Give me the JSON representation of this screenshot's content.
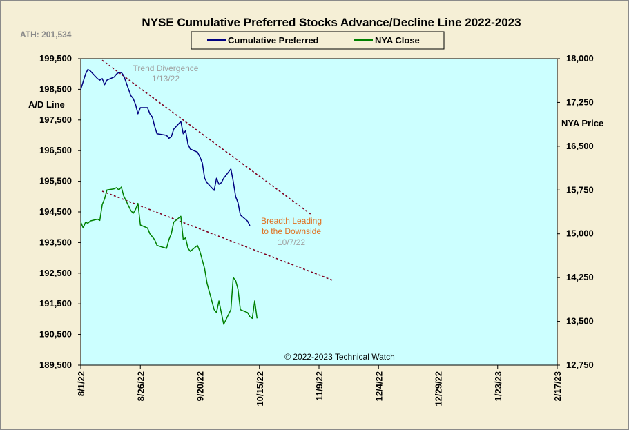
{
  "title": "NYSE Cumulative  Preferred Stocks Advance/Decline  Line  2022-2023",
  "ath_label": "ATH: 201,534",
  "copyright": "© 2022-2023  Technical  Watch",
  "colors": {
    "background": "#f5efd6",
    "plot_area": "#ccffff",
    "ad_line": "#000080",
    "nya_line": "#008000",
    "trendline": "#800020",
    "annotation_orange": "#e07020",
    "annotation_gray": "#a0a0a0"
  },
  "chart_data": {
    "type": "line",
    "title": "NYSE Cumulative  Preferred Stocks Advance/Decline  Line  2022-2023",
    "x_axis": {
      "ticks": [
        "8/1/22",
        "8/26/22",
        "9/20/22",
        "10/15/22",
        "11/9/22",
        "12/4/22",
        "12/29/22",
        "1/23/23",
        "2/17/23"
      ],
      "range": [
        "8/1/22",
        "2/17/23"
      ]
    },
    "y_left": {
      "label": "A/D Line",
      "ticks": [
        "199,500",
        "198,500",
        "197,500",
        "196,500",
        "195,500",
        "194,500",
        "193,500",
        "192,500",
        "191,500",
        "190,500",
        "189,500"
      ],
      "range": [
        189500,
        199500
      ]
    },
    "y_right": {
      "label": "NYA Price",
      "ticks": [
        "18,000",
        "17,250",
        "16,500",
        "15,750",
        "15,000",
        "14,250",
        "13,500",
        "12,750"
      ],
      "range": [
        12750,
        18000
      ]
    },
    "legend": {
      "placement": "top-center",
      "entries": [
        "Cumulative Preferred",
        "NYA Close"
      ]
    },
    "grid": false,
    "series": [
      {
        "name": "Cumulative Preferred",
        "axis": "left",
        "points": [
          [
            "8/1/22",
            198500
          ],
          [
            "8/2/22",
            198750
          ],
          [
            "8/3/22",
            199000
          ],
          [
            "8/4/22",
            199150
          ],
          [
            "8/5/22",
            199100
          ],
          [
            "8/8/22",
            198850
          ],
          [
            "8/9/22",
            198800
          ],
          [
            "8/10/22",
            198850
          ],
          [
            "8/11/22",
            198650
          ],
          [
            "8/12/22",
            198800
          ],
          [
            "8/15/22",
            198900
          ],
          [
            "8/16/22",
            199000
          ],
          [
            "8/17/22",
            199050
          ],
          [
            "8/18/22",
            199050
          ],
          [
            "8/19/22",
            198950
          ],
          [
            "8/22/22",
            198300
          ],
          [
            "8/23/22",
            198200
          ],
          [
            "8/24/22",
            198000
          ],
          [
            "8/25/22",
            197700
          ],
          [
            "8/26/22",
            197900
          ],
          [
            "8/29/22",
            197900
          ],
          [
            "8/30/22",
            197700
          ],
          [
            "8/31/22",
            197600
          ],
          [
            "9/1/22",
            197300
          ],
          [
            "9/2/22",
            197050
          ],
          [
            "9/6/22",
            197000
          ],
          [
            "9/7/22",
            196900
          ],
          [
            "9/8/22",
            196950
          ],
          [
            "9/9/22",
            197200
          ],
          [
            "9/12/22",
            197450
          ],
          [
            "9/13/22",
            197050
          ],
          [
            "9/14/22",
            197150
          ],
          [
            "9/15/22",
            196700
          ],
          [
            "9/16/22",
            196550
          ],
          [
            "9/19/22",
            196450
          ],
          [
            "9/20/22",
            196300
          ],
          [
            "9/21/22",
            196100
          ],
          [
            "9/22/22",
            195600
          ],
          [
            "9/23/22",
            195450
          ],
          [
            "9/26/22",
            195200
          ],
          [
            "9/27/22",
            195600
          ],
          [
            "9/28/22",
            195400
          ],
          [
            "9/29/22",
            195450
          ],
          [
            "9/30/22",
            195600
          ],
          [
            "10/3/22",
            195900
          ],
          [
            "10/4/22",
            195500
          ],
          [
            "10/5/22",
            195000
          ],
          [
            "10/6/22",
            194800
          ],
          [
            "10/7/22",
            194400
          ],
          [
            "10/10/22",
            194200
          ],
          [
            "10/11/22",
            194050
          ]
        ]
      },
      {
        "name": "NYA Close",
        "axis": "right",
        "points": [
          [
            "8/1/22",
            15200
          ],
          [
            "8/2/22",
            15100
          ],
          [
            "8/3/22",
            15200
          ],
          [
            "8/4/22",
            15180
          ],
          [
            "8/5/22",
            15220
          ],
          [
            "8/8/22",
            15250
          ],
          [
            "8/9/22",
            15230
          ],
          [
            "8/10/22",
            15500
          ],
          [
            "8/11/22",
            15600
          ],
          [
            "8/12/22",
            15750
          ],
          [
            "8/15/22",
            15770
          ],
          [
            "8/16/22",
            15790
          ],
          [
            "8/17/22",
            15750
          ],
          [
            "8/18/22",
            15800
          ],
          [
            "8/19/22",
            15650
          ],
          [
            "8/22/22",
            15400
          ],
          [
            "8/23/22",
            15350
          ],
          [
            "8/24/22",
            15420
          ],
          [
            "8/25/22",
            15520
          ],
          [
            "8/26/22",
            15150
          ],
          [
            "8/29/22",
            15100
          ],
          [
            "8/30/22",
            15000
          ],
          [
            "8/31/22",
            14950
          ],
          [
            "9/1/22",
            14900
          ],
          [
            "9/2/22",
            14800
          ],
          [
            "9/6/22",
            14750
          ],
          [
            "9/7/22",
            14900
          ],
          [
            "9/8/22",
            15000
          ],
          [
            "9/9/22",
            15200
          ],
          [
            "9/12/22",
            15300
          ],
          [
            "9/13/22",
            14900
          ],
          [
            "9/14/22",
            14930
          ],
          [
            "9/15/22",
            14750
          ],
          [
            "9/16/22",
            14700
          ],
          [
            "9/19/22",
            14800
          ],
          [
            "9/20/22",
            14700
          ],
          [
            "9/21/22",
            14550
          ],
          [
            "9/22/22",
            14400
          ],
          [
            "9/23/22",
            14150
          ],
          [
            "9/26/22",
            13700
          ],
          [
            "9/27/22",
            13650
          ],
          [
            "9/28/22",
            13850
          ],
          [
            "9/29/22",
            13650
          ],
          [
            "9/30/22",
            13450
          ],
          [
            "10/3/22",
            13700
          ],
          [
            "10/4/22",
            14250
          ],
          [
            "10/5/22",
            14200
          ],
          [
            "10/6/22",
            14050
          ],
          [
            "10/7/22",
            13700
          ],
          [
            "10/10/22",
            13650
          ],
          [
            "10/11/22",
            13580
          ],
          [
            "10/12/22",
            13550
          ],
          [
            "10/13/22",
            13850
          ],
          [
            "10/14/22",
            13550
          ]
        ]
      }
    ],
    "trendlines": [
      {
        "axis": "left",
        "from": [
          "8/10/22",
          199450
        ],
        "to": [
          "11/6/22",
          194400
        ]
      },
      {
        "axis": "right",
        "from": [
          "8/10/22",
          15730
        ],
        "to": [
          "11/15/22",
          14200
        ]
      }
    ],
    "annotations": [
      {
        "lines": [
          "Trend  Divergence",
          "1/13/22"
        ],
        "style": "gray"
      },
      {
        "lines": [
          "Breadth  Leading",
          "to the Downside"
        ],
        "style": "orange"
      },
      {
        "lines": [
          "10/7/22"
        ],
        "style": "gray"
      }
    ]
  }
}
